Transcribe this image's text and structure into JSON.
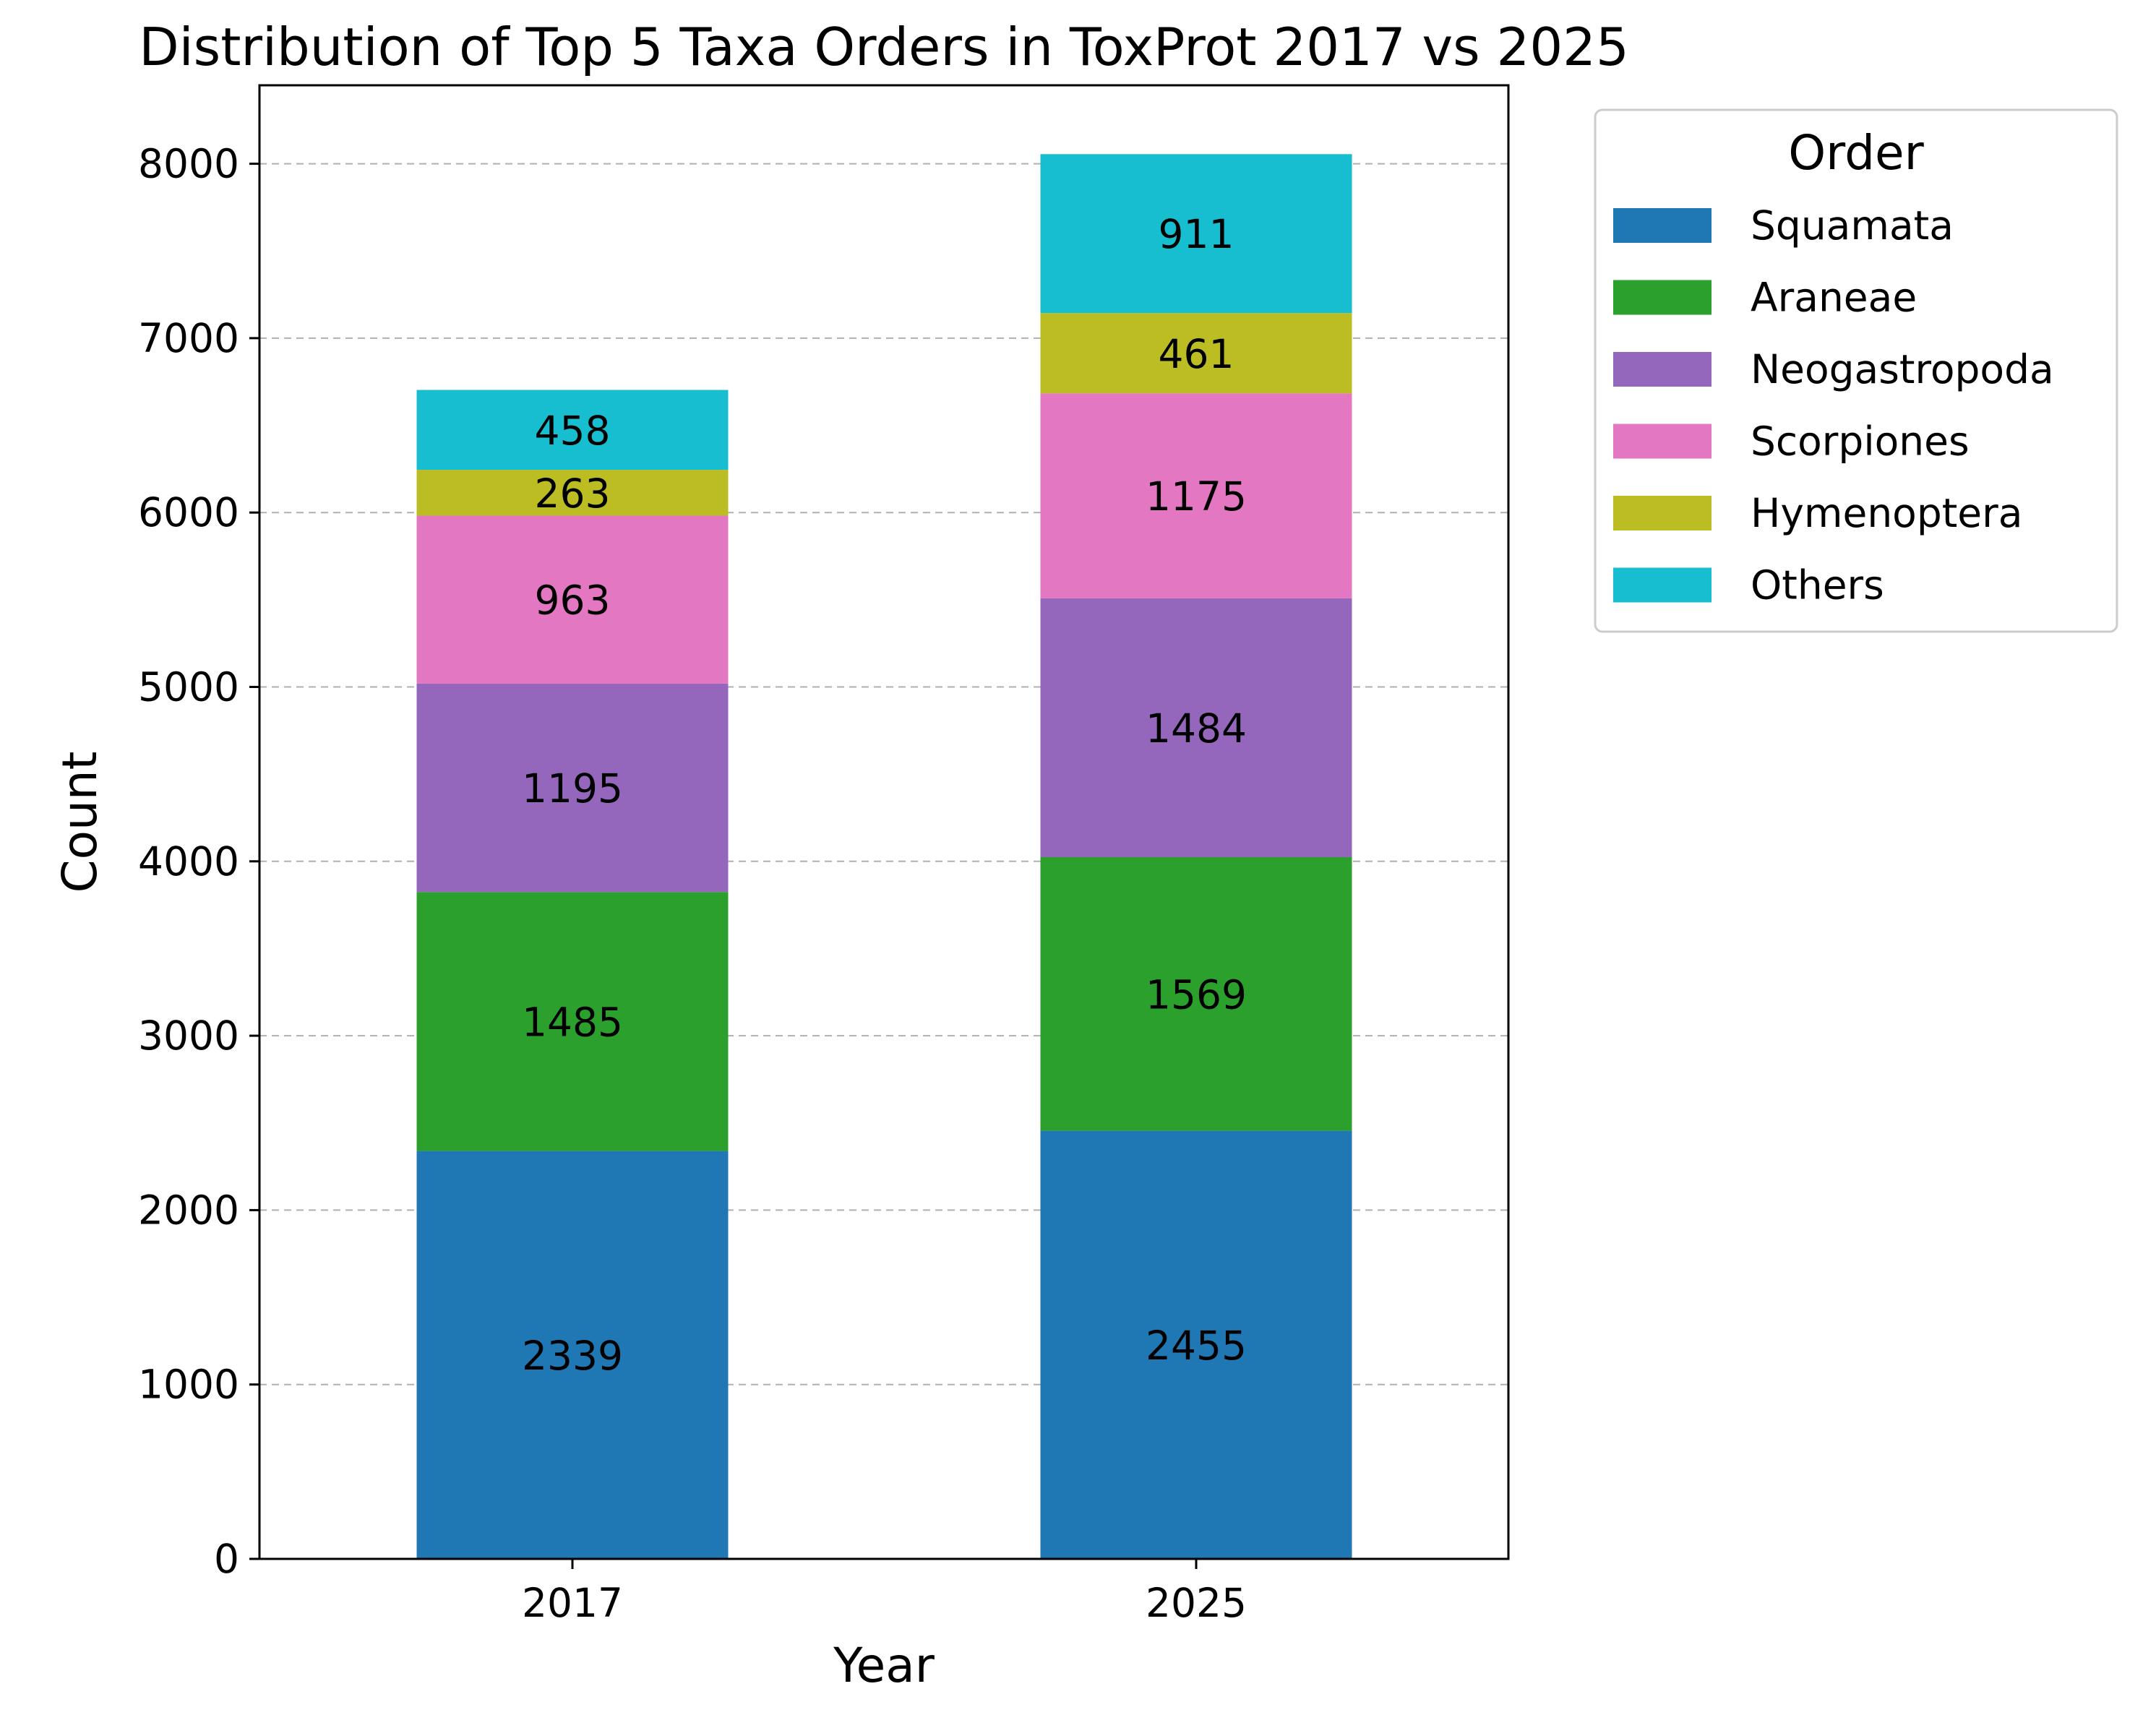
{
  "chart_data": {
    "type": "bar",
    "stacked": true,
    "title": "Distribution of Top 5 Taxa Orders in ToxProt 2017 vs 2025",
    "xlabel": "Year",
    "ylabel": "Count",
    "categories": [
      "2017",
      "2025"
    ],
    "ylim": [
      0,
      8450
    ],
    "yticks": [
      "0",
      "1000",
      "2000",
      "3000",
      "4000",
      "5000",
      "6000",
      "7000",
      "8000"
    ],
    "grid": "horizontal dashed",
    "legend": {
      "title": "Order",
      "placement": "outside upper right"
    },
    "series": [
      {
        "name": "Squamata",
        "color": "#1f77b4",
        "values": [
          2339,
          2455
        ]
      },
      {
        "name": "Araneae",
        "color": "#2ca02c",
        "values": [
          1485,
          1569
        ]
      },
      {
        "name": "Neogastropoda",
        "color": "#9467bd",
        "values": [
          1195,
          1484
        ]
      },
      {
        "name": "Scorpiones",
        "color": "#e377c2",
        "values": [
          963,
          1175
        ]
      },
      {
        "name": "Hymenoptera",
        "color": "#bcbd22",
        "values": [
          263,
          461
        ]
      },
      {
        "name": "Others",
        "color": "#17becf",
        "values": [
          458,
          911
        ]
      }
    ]
  }
}
